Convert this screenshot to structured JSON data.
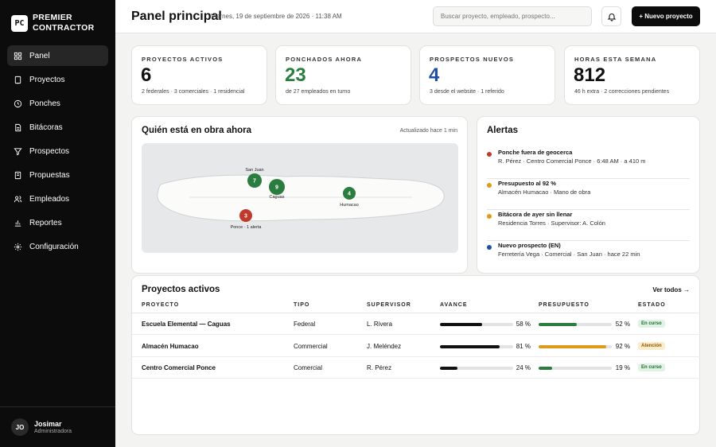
{
  "brand": {
    "logo": "PC",
    "line1": "PREMIER",
    "line2": "CONTRACTOR"
  },
  "nav": [
    {
      "label": "Panel",
      "icon": "grid-icon",
      "active": true
    },
    {
      "label": "Proyectos",
      "icon": "building-icon"
    },
    {
      "label": "Ponches",
      "icon": "clock-icon"
    },
    {
      "label": "Bitácoras",
      "icon": "document-icon"
    },
    {
      "label": "Prospectos",
      "icon": "filter-icon"
    },
    {
      "label": "Propuestas",
      "icon": "file-icon"
    },
    {
      "label": "Empleados",
      "icon": "users-icon"
    },
    {
      "label": "Reportes",
      "icon": "bar-chart-icon"
    },
    {
      "label": "Configuración",
      "icon": "gear-icon"
    }
  ],
  "user": {
    "initials": "JO",
    "name": "Josimar",
    "role": "Administradora"
  },
  "header": {
    "title": "Panel principal",
    "date": "Viernes, 19 de septiembre de 2026 · 11:38 AM",
    "search_placeholder": "Buscar proyecto, empleado, prospecto...",
    "new_button": "+ Nuevo proyecto",
    "bell_icon": "bell-icon"
  },
  "kpis": [
    {
      "label": "PROYECTOS ACTIVOS",
      "value": "6",
      "sub": "2 federales · 3 comerciales · 1 residencial",
      "color": "#111111"
    },
    {
      "label": "PONCHADOS AHORA",
      "value": "23",
      "sub": "de 27 empleados en turno",
      "color": "#2a7d3e"
    },
    {
      "label": "PROSPECTOS NUEVOS",
      "value": "4",
      "sub": "3 desde el website · 1 referido",
      "color": "#1f4fa3"
    },
    {
      "label": "HORAS ESTA SEMANA",
      "value": "812",
      "sub": "46 h extra · 2 correcciones pendientes",
      "color": "#111111"
    }
  ],
  "map": {
    "title": "Quién está en obra ahora",
    "updated": "Actualizado hace 1 min",
    "markers": [
      {
        "count": "7",
        "label": "San Juan",
        "color": "#2a7d3e"
      },
      {
        "count": "9",
        "label": "Caguas",
        "color": "#2a7d3e"
      },
      {
        "count": "4",
        "label": "Humacao",
        "color": "#2a7d3e"
      },
      {
        "count": "3",
        "label": "Ponce · 1 alerta",
        "color": "#c0392b"
      }
    ]
  },
  "alerts": {
    "title": "Alertas",
    "items": [
      {
        "title": "Ponche fuera de geocerca",
        "desc": "R. Pérez · Centro Comercial Ponce · 6:48 AM · a 410 m",
        "color": "#c0392b"
      },
      {
        "title": "Presupuesto al 92 %",
        "desc": "Almacén Humacao · Mano de obra",
        "color": "#e09a1a"
      },
      {
        "title": "Bitácora de ayer sin llenar",
        "desc": "Residencia Torres · Supervisor: A. Colón",
        "color": "#e09a1a"
      },
      {
        "title": "Nuevo prospecto (EN)",
        "desc": "Ferretería Vega · Comercial · San Juan · hace 22 min",
        "color": "#1f4fa3"
      }
    ]
  },
  "projects": {
    "title": "Proyectos activos",
    "view_all": "Ver todos →",
    "headers": {
      "project": "PROYECTO",
      "type": "TIPO",
      "supervisor": "SUPERVISOR",
      "progress": "AVANCE",
      "budget": "PRESUPUESTO",
      "status": "ESTADO"
    },
    "rows": [
      {
        "name": "Escuela Elemental — Caguas",
        "type": "Federal",
        "supervisor": "L. Rivera",
        "progress": 58,
        "progress_label": "58 %",
        "budget": 52,
        "budget_label": "52 %",
        "budget_color": "#2a7d3e",
        "status": "En curso",
        "status_bg": "#dff2e3",
        "status_fg": "#1e6b32"
      },
      {
        "name": "Almacén Humacao",
        "type": "Commercial",
        "supervisor": "J. Meléndez",
        "progress": 81,
        "progress_label": "81 %",
        "budget": 92,
        "budget_label": "92 %",
        "budget_color": "#e09a1a",
        "status": "Atención",
        "status_bg": "#fbeccd",
        "status_fg": "#8a5a00"
      },
      {
        "name": "Centro Comercial Ponce",
        "type": "Comercial",
        "supervisor": "R. Pérez",
        "progress": 24,
        "progress_label": "24 %",
        "budget": 19,
        "budget_label": "19 %",
        "budget_color": "#2a7d3e",
        "status": "En curso",
        "status_bg": "#dff2e3",
        "status_fg": "#1e6b32"
      }
    ]
  }
}
